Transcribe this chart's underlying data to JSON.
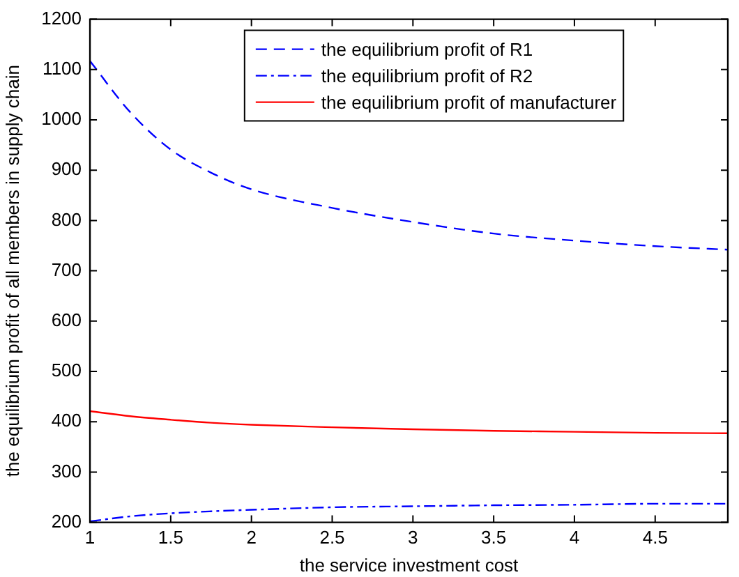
{
  "chart_data": {
    "type": "line",
    "xlabel": "the service investment cost",
    "ylabel": "the equilibrium profit of all members in supply chain",
    "x": [
      1,
      1.25,
      1.5,
      1.75,
      2,
      2.5,
      3,
      3.5,
      4,
      4.5,
      4.95
    ],
    "series": [
      {
        "name": "the equilibrium profit of R1",
        "color": "#0000ff",
        "line_style": "dashed",
        "values": [
          1117,
          1015,
          941,
          895,
          862,
          825,
          797,
          774,
          760,
          749,
          742
        ]
      },
      {
        "name": "the equilibrium profit of R2",
        "color": "#0000ff",
        "line_style": "dashdot",
        "values": [
          202,
          212,
          218,
          222,
          225,
          230,
          232,
          234,
          235,
          237,
          237
        ]
      },
      {
        "name": "the equilibrium profit of manufacturer",
        "color": "#ff0000",
        "line_style": "solid",
        "values": [
          421,
          411,
          404,
          398,
          394,
          389,
          385,
          382,
          380,
          378,
          377
        ]
      }
    ],
    "xlim": [
      1,
      4.95
    ],
    "xticks": [
      1,
      1.5,
      2,
      2.5,
      3,
      3.5,
      4,
      4.5
    ],
    "ylim": [
      200,
      1200
    ],
    "yticks": [
      200,
      300,
      400,
      500,
      600,
      700,
      800,
      900,
      1000,
      1100,
      1200
    ],
    "grid": false,
    "legend": "top",
    "marker": "none"
  }
}
